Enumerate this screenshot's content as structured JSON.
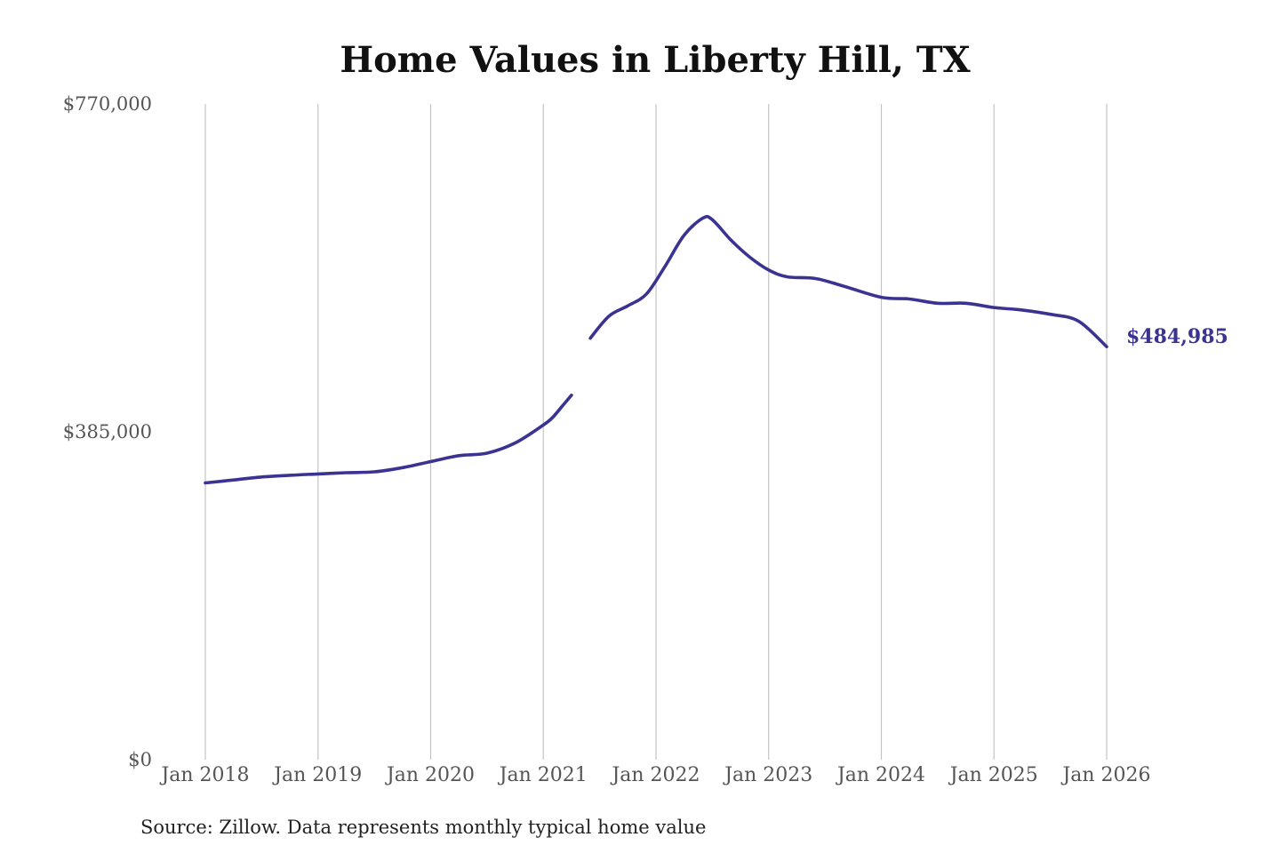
{
  "chart_data": {
    "type": "line",
    "title": "Home Values in Liberty Hill, TX",
    "xlabel": "",
    "ylabel": "",
    "y_ticks": [
      "$770,000",
      "$385,000",
      "$0"
    ],
    "y_tick_values": [
      770000,
      385000,
      0
    ],
    "ylim": [
      0,
      770000
    ],
    "x_ticks": [
      "Jan 2018",
      "Jan 2019",
      "Jan 2020",
      "Jan 2021",
      "Jan 2022",
      "Jan 2023",
      "Jan 2024",
      "Jan 2025",
      "Jan 2026"
    ],
    "xlim": [
      "2018-01",
      "2026-01"
    ],
    "grid": "vertical",
    "legend": "none",
    "series_color": "#3b3391",
    "end_label": "$484,985",
    "source": "Source: Zillow. Data represents monthly typical home value",
    "series": [
      {
        "segments": [
          {
            "x": [
              "2018-01",
              "2018-04",
              "2018-07",
              "2018-10",
              "2019-01",
              "2019-04",
              "2019-07",
              "2019-10",
              "2020-01",
              "2020-04",
              "2020-07",
              "2020-10",
              "2021-01",
              "2021-02",
              "2021-03",
              "2021-04"
            ],
            "y": [
              325000,
              328500,
              332000,
              334000,
              335500,
              337000,
              338000,
              343000,
              350000,
              357000,
              360000,
              372000,
              393000,
              402000,
              415000,
              428000
            ]
          },
          {
            "x": [
              "2021-06",
              "2021-08",
              "2021-10",
              "2021-12",
              "2022-02",
              "2022-04",
              "2022-06",
              "2022-07",
              "2022-09",
              "2022-11",
              "2023-01",
              "2023-03",
              "2023-06",
              "2023-09",
              "2024-01",
              "2024-04",
              "2024-07",
              "2024-10",
              "2025-01",
              "2025-04",
              "2025-07",
              "2025-10",
              "2026-01"
            ],
            "y": [
              495000,
              521000,
              533000,
              547000,
              580000,
              616000,
              636000,
              634000,
              610000,
              590000,
              575000,
              567000,
              565000,
              556000,
              543000,
              541000,
              536000,
              536000,
              531000,
              528000,
              523000,
              515000,
              484985
            ]
          }
        ]
      }
    ]
  }
}
